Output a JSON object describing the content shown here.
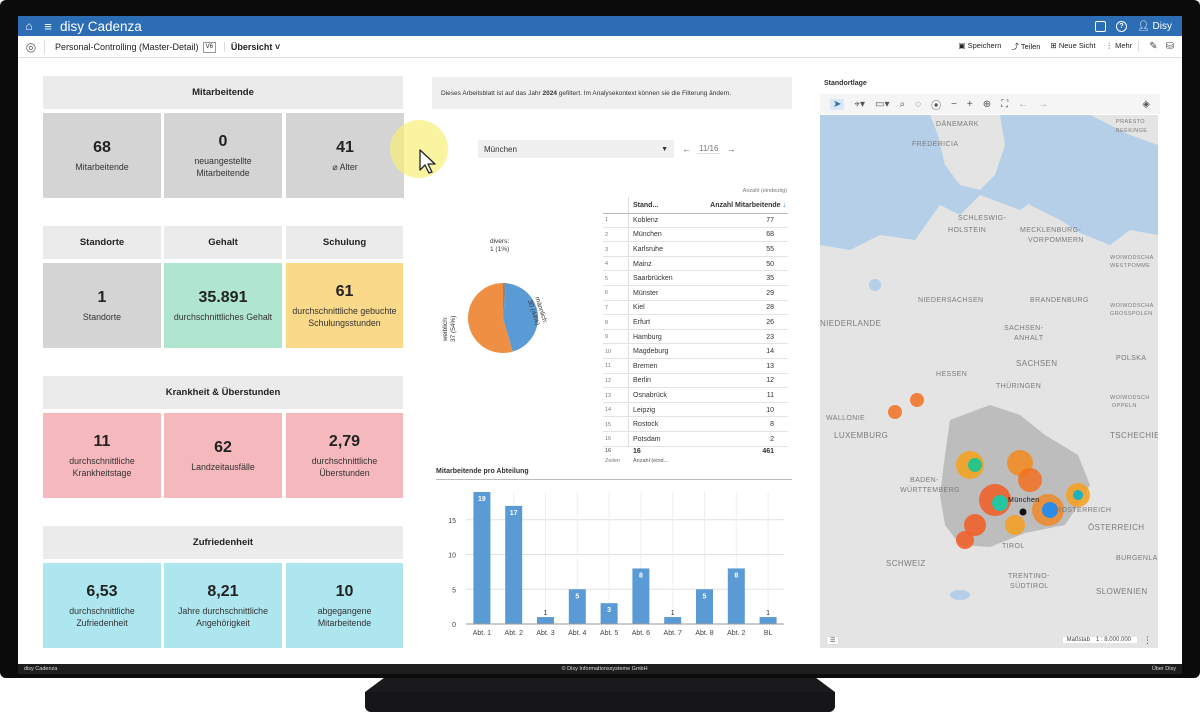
{
  "app": {
    "title": "disy Cadenza",
    "user": "Disy",
    "worksheet": "Personal-Controlling (Master-Detail)",
    "worksheet_badge": "V6",
    "view": "Übersicht",
    "accent_color": "#2c6db4"
  },
  "toolbar": {
    "save": "Speichern",
    "share": "Teilen",
    "new_view": "Neue Sicht",
    "more": "Mehr"
  },
  "kpi": {
    "mitarbeitende": {
      "header": "Mitarbeitende",
      "tiles": [
        {
          "value": "68",
          "label": "Mitarbeitende"
        },
        {
          "value": "0",
          "label": "neuangestellte\nMitarbeitende"
        },
        {
          "value": "41",
          "label": "⌀ Alter"
        }
      ]
    },
    "standorte": {
      "header": "Standorte",
      "value": "1",
      "label": "Standorte"
    },
    "gehalt": {
      "header": "Gehalt",
      "value": "35.891",
      "label": "durchschnittliches Gehalt"
    },
    "schulung": {
      "header": "Schulung",
      "value": "61",
      "label": "durchschnittliche gebuchte\nSchulungsstunden"
    },
    "krankheit": {
      "header": "Krankheit & Überstunden",
      "tiles": [
        {
          "value": "11",
          "label": "durchschnittliche\nKrankheitstage"
        },
        {
          "value": "62",
          "label": "Landzeitausfälle"
        },
        {
          "value": "2,79",
          "label": "durchschnittliche\nÜberstunden"
        }
      ]
    },
    "zufriedenheit": {
      "header": "Zufriedenheit",
      "tiles": [
        {
          "value": "6,53",
          "label": "durchschnittliche\nZufriedenheit"
        },
        {
          "value": "8,21",
          "label": "Jahre durchschnittliche\nAngehörigkeit"
        },
        {
          "value": "10",
          "label": "abgegangene\nMitarbeitende"
        }
      ]
    }
  },
  "notice": {
    "before": "Dieses Arbeitsblatt ist auf das Jahr ",
    "year": "2024",
    "after": " gefiltert. Im Analysekontext können sie die Filterung ändern."
  },
  "filter": {
    "selected": "München",
    "pager": "11/16"
  },
  "pie": {
    "labels": {
      "divers": "divers:\n1 (1%)",
      "maennlich": "männlich:\n30 (44%)",
      "weiblich": "weiblich:\n37 (54%)"
    },
    "colors": {
      "maennlich": "#5b9bd5",
      "weiblich": "#ee8f43",
      "divers": "#888888"
    }
  },
  "table": {
    "header_sub": "Anzahl (eindeutig)",
    "col_location": "Stand...",
    "col_count": "Anzahl Mitarbeitende",
    "rows": [
      {
        "n": "1",
        "name": "Koblenz",
        "count": "77"
      },
      {
        "n": "2",
        "name": "München",
        "count": "68"
      },
      {
        "n": "3",
        "name": "Karlsruhe",
        "count": "55"
      },
      {
        "n": "4",
        "name": "Mainz",
        "count": "50"
      },
      {
        "n": "5",
        "name": "Saarbrücken",
        "count": "35"
      },
      {
        "n": "6",
        "name": "Münster",
        "count": "29"
      },
      {
        "n": "7",
        "name": "Kiel",
        "count": "28"
      },
      {
        "n": "8",
        "name": "Erfurt",
        "count": "26"
      },
      {
        "n": "9",
        "name": "Hamburg",
        "count": "23"
      },
      {
        "n": "10",
        "name": "Magdeburg",
        "count": "14"
      },
      {
        "n": "11",
        "name": "Bremen",
        "count": "13"
      },
      {
        "n": "12",
        "name": "Berlin",
        "count": "12"
      },
      {
        "n": "13",
        "name": "Osnabrück",
        "count": "11"
      },
      {
        "n": "14",
        "name": "Leipzig",
        "count": "10"
      },
      {
        "n": "15",
        "name": "Rostock",
        "count": "8"
      },
      {
        "n": "16",
        "name": "Potsdam",
        "count": "2"
      }
    ],
    "footer_n": "16",
    "footer_count_label": "16",
    "footer_total": "461",
    "footer_rows_label": "Zeilen",
    "footer_agg_label": "Anzahl (eind..."
  },
  "chart_data": {
    "type": "bar",
    "title": "Mitarbeitende pro Abteilung",
    "categories": [
      "Abt. 1",
      "Abt. 2",
      "Abt. 3",
      "Abt. 4",
      "Abt. 5",
      "Abt. 6",
      "Abt. 7",
      "Abt. 8",
      "Abt. 2",
      "BL"
    ],
    "values": [
      19,
      17,
      1,
      5,
      3,
      8,
      1,
      5,
      8,
      1
    ],
    "ylim": [
      0,
      19
    ],
    "yticks": [
      0,
      5,
      10,
      15
    ],
    "bar_color": "#5b9bd5",
    "grid": true
  },
  "map": {
    "title": "Standortlage",
    "scale_label": "Maßstab",
    "scale_value": "1 : 8.000.000",
    "city_label": "München",
    "labels": [
      "DÄNEMARK",
      "FREDERICIA",
      "PRAESTO",
      "BEEKINGE",
      "SCHLESWIG-",
      "HOLSTEIN",
      "MECKLENBURG-",
      "VORPOMMERN",
      "NIEDERSACHSEN",
      "BRANDENBURG",
      "NIEDERLANDE",
      "SACHSEN-",
      "ANHALT",
      "SACHSEN",
      "HESSEN",
      "THÜRINGEN",
      "POLSKA",
      "LUXEMBURG",
      "TSCHECHIE",
      "WALLONIE",
      "ÖSTERREICH",
      "SCHWEIZ",
      "TIROL",
      "TRENTINO-",
      "SÜDTIROL",
      "SLOWENIEN",
      "BADEN-",
      "WÜRTTEMBERG",
      "WOIWODSCHA",
      "WESTPOMME",
      "WOIWODSCHA",
      "GROSSPOLEN",
      "WOIWODSCH",
      "OPPELN",
      "ROSTERREICH",
      "BURGENLA"
    ]
  },
  "footer": {
    "left": "disy Cadenza",
    "center": "© Disy Informationssysteme GmbH",
    "right": "Über Disy"
  }
}
